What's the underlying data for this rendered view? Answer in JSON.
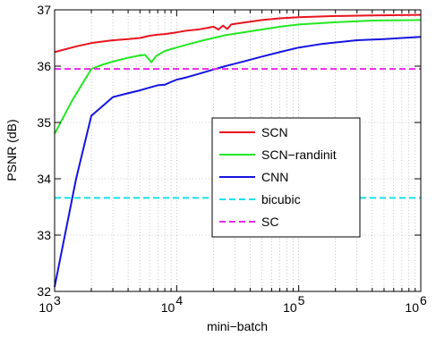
{
  "chart_data": {
    "type": "line",
    "title": "",
    "xlabel": "mini−batch",
    "ylabel": "PSNR (dB)",
    "xscale": "log",
    "xlim": [
      1000,
      1000000
    ],
    "ylim": [
      32,
      37
    ],
    "grid": true,
    "legend_position": "center-right",
    "x_tick_labels": [
      {
        "base": "10",
        "exp": "3"
      },
      {
        "base": "10",
        "exp": "4"
      },
      {
        "base": "10",
        "exp": "5"
      },
      {
        "base": "10",
        "exp": "6"
      }
    ],
    "y_tick_labels": [
      "32",
      "33",
      "34",
      "35",
      "36",
      "37"
    ],
    "series": [
      {
        "name": "SCN",
        "color": "#e8141e",
        "style": "solid",
        "points": [
          [
            1000,
            36.25
          ],
          [
            1500,
            36.35
          ],
          [
            2000,
            36.41
          ],
          [
            3000,
            36.46
          ],
          [
            4000,
            36.48
          ],
          [
            5000,
            36.5
          ],
          [
            6000,
            36.54
          ],
          [
            7000,
            36.56
          ],
          [
            8000,
            36.57
          ],
          [
            10000,
            36.6
          ],
          [
            12000,
            36.63
          ],
          [
            15000,
            36.65
          ],
          [
            18000,
            36.68
          ],
          [
            20000,
            36.7
          ],
          [
            22000,
            36.65
          ],
          [
            24000,
            36.72
          ],
          [
            26000,
            36.66
          ],
          [
            28000,
            36.74
          ],
          [
            32000,
            36.76
          ],
          [
            40000,
            36.79
          ],
          [
            50000,
            36.82
          ],
          [
            70000,
            36.85
          ],
          [
            100000,
            36.87
          ],
          [
            200000,
            36.89
          ],
          [
            400000,
            36.9
          ],
          [
            1000000,
            36.91
          ]
        ]
      },
      {
        "name": "SCN−randinit",
        "color": "#22e822",
        "style": "solid",
        "points": [
          [
            1000,
            34.8
          ],
          [
            1400,
            35.4
          ],
          [
            2000,
            35.95
          ],
          [
            2500,
            36.03
          ],
          [
            3000,
            36.08
          ],
          [
            4000,
            36.15
          ],
          [
            5000,
            36.19
          ],
          [
            5500,
            36.2
          ],
          [
            6200,
            36.07
          ],
          [
            6800,
            36.18
          ],
          [
            8000,
            36.27
          ],
          [
            10000,
            36.33
          ],
          [
            13000,
            36.4
          ],
          [
            16000,
            36.45
          ],
          [
            20000,
            36.5
          ],
          [
            25000,
            36.55
          ],
          [
            35000,
            36.6
          ],
          [
            50000,
            36.65
          ],
          [
            70000,
            36.7
          ],
          [
            100000,
            36.74
          ],
          [
            200000,
            36.78
          ],
          [
            400000,
            36.81
          ],
          [
            1000000,
            36.82
          ]
        ]
      },
      {
        "name": "CNN",
        "color": "#1414e0",
        "style": "solid",
        "points": [
          [
            1000,
            32.08
          ],
          [
            1500,
            34.0
          ],
          [
            2000,
            35.12
          ],
          [
            2500,
            35.3
          ],
          [
            3000,
            35.45
          ],
          [
            4000,
            35.52
          ],
          [
            5000,
            35.57
          ],
          [
            6000,
            35.62
          ],
          [
            7000,
            35.66
          ],
          [
            8000,
            35.67
          ],
          [
            9000,
            35.72
          ],
          [
            10000,
            35.76
          ],
          [
            12000,
            35.8
          ],
          [
            15000,
            35.86
          ],
          [
            20000,
            35.94
          ],
          [
            25000,
            36.0
          ],
          [
            35000,
            36.08
          ],
          [
            50000,
            36.17
          ],
          [
            70000,
            36.25
          ],
          [
            100000,
            36.33
          ],
          [
            150000,
            36.39
          ],
          [
            200000,
            36.42
          ],
          [
            300000,
            36.46
          ],
          [
            500000,
            36.48
          ],
          [
            700000,
            36.5
          ],
          [
            1000000,
            36.52
          ]
        ]
      },
      {
        "name": "bicubic",
        "color": "#16e0e8",
        "style": "dashed",
        "points": [
          [
            1000,
            33.66
          ],
          [
            1000000,
            33.66
          ]
        ]
      },
      {
        "name": "SC",
        "color": "#e828e8",
        "style": "dashed",
        "points": [
          [
            1000,
            35.95
          ],
          [
            1000000,
            35.95
          ]
        ]
      }
    ]
  }
}
